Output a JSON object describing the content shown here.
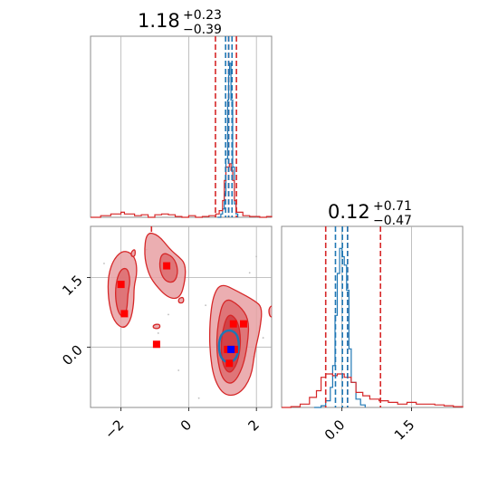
{
  "chart_data": [
    {
      "type": "histogram",
      "panel": "marginal-x",
      "title": {
        "base": "1.18",
        "sup": "+0.23",
        "sub": "−0.39"
      },
      "xlim": [
        -2.9,
        2.45
      ],
      "grid": true,
      "red_quantiles": [
        0.79,
        1.18,
        1.41
      ],
      "blue_quantiles": [
        1.09,
        1.18,
        1.28
      ],
      "series": [
        {
          "color": "#1f77b4",
          "style": "step",
          "bins": [
            [
              0.85,
              0.0
            ],
            [
              0.95,
              0.02
            ],
            [
              1.0,
              0.05
            ],
            [
              1.05,
              0.14
            ],
            [
              1.1,
              0.35
            ],
            [
              1.15,
              0.7
            ],
            [
              1.18,
              0.85
            ],
            [
              1.21,
              0.92
            ],
            [
              1.25,
              0.7
            ],
            [
              1.3,
              0.3
            ],
            [
              1.35,
              0.08
            ],
            [
              1.4,
              0.02
            ],
            [
              1.45,
              0.0
            ]
          ]
        },
        {
          "color": "#d62728",
          "style": "step",
          "bins": [
            [
              -2.9,
              0.0
            ],
            [
              -2.6,
              0.01
            ],
            [
              -2.3,
              0.02
            ],
            [
              -2.0,
              0.03
            ],
            [
              -1.9,
              0.02
            ],
            [
              -1.6,
              0.01
            ],
            [
              -1.4,
              0.015
            ],
            [
              -1.2,
              0.0
            ],
            [
              -1.0,
              0.015
            ],
            [
              -0.8,
              0.02
            ],
            [
              -0.6,
              0.015
            ],
            [
              -0.4,
              0.005
            ],
            [
              -0.2,
              0.0
            ],
            [
              0.0,
              0.01
            ],
            [
              0.2,
              0.0
            ],
            [
              0.4,
              0.005
            ],
            [
              0.6,
              0.01
            ],
            [
              0.8,
              0.02
            ],
            [
              0.9,
              0.04
            ],
            [
              1.0,
              0.1
            ],
            [
              1.05,
              0.22
            ],
            [
              1.1,
              0.3
            ],
            [
              1.2,
              0.32
            ],
            [
              1.25,
              0.28
            ],
            [
              1.3,
              0.22
            ],
            [
              1.35,
              0.1
            ],
            [
              1.4,
              0.03
            ],
            [
              1.6,
              0.01
            ],
            [
              1.8,
              0.005
            ],
            [
              2.1,
              0.0
            ],
            [
              2.3,
              0.005
            ],
            [
              2.45,
              0.0
            ]
          ]
        }
      ]
    },
    {
      "type": "histogram",
      "panel": "marginal-y",
      "title": {
        "base": "0.12",
        "sup": "+0.71",
        "sub": "−0.47"
      },
      "xlim": [
        -1.3,
        2.6
      ],
      "ticks": [
        "0.0",
        "1.5"
      ],
      "tick_values": [
        0.0,
        1.5
      ],
      "grid": true,
      "red_quantiles": [
        -0.35,
        0.12,
        0.83
      ],
      "blue_quantiles": [
        -0.14,
        0.01,
        0.12
      ],
      "series": [
        {
          "color": "#1f77b4",
          "style": "step",
          "bins": [
            [
              -0.6,
              0.0
            ],
            [
              -0.45,
              0.01
            ],
            [
              -0.35,
              0.04
            ],
            [
              -0.25,
              0.12
            ],
            [
              -0.2,
              0.25
            ],
            [
              -0.15,
              0.55
            ],
            [
              -0.1,
              0.8
            ],
            [
              -0.05,
              0.95
            ],
            [
              0.0,
              0.9
            ],
            [
              0.05,
              0.85
            ],
            [
              0.1,
              0.7
            ],
            [
              0.15,
              0.35
            ],
            [
              0.2,
              0.15
            ],
            [
              0.3,
              0.05
            ],
            [
              0.4,
              0.015
            ],
            [
              0.5,
              0.0
            ]
          ]
        },
        {
          "color": "#d62728",
          "style": "step",
          "bins": [
            [
              -1.3,
              0.0
            ],
            [
              -1.1,
              0.005
            ],
            [
              -0.9,
              0.02
            ],
            [
              -0.7,
              0.06
            ],
            [
              -0.55,
              0.1
            ],
            [
              -0.45,
              0.18
            ],
            [
              -0.35,
              0.2
            ],
            [
              -0.2,
              0.19
            ],
            [
              -0.1,
              0.2
            ],
            [
              0.05,
              0.18
            ],
            [
              0.2,
              0.15
            ],
            [
              0.3,
              0.09
            ],
            [
              0.45,
              0.07
            ],
            [
              0.6,
              0.05
            ],
            [
              0.8,
              0.04
            ],
            [
              1.0,
              0.03
            ],
            [
              1.2,
              0.02
            ],
            [
              1.4,
              0.03
            ],
            [
              1.6,
              0.02
            ],
            [
              1.8,
              0.02
            ],
            [
              2.0,
              0.015
            ],
            [
              2.2,
              0.01
            ],
            [
              2.4,
              0.005
            ],
            [
              2.6,
              0.0
            ]
          ]
        }
      ]
    },
    {
      "type": "contour",
      "panel": "joint",
      "xlim": [
        -2.9,
        2.45
      ],
      "ylim": [
        -1.3,
        2.6
      ],
      "xticks": [
        "−2",
        "0",
        "2"
      ],
      "xtick_values": [
        -2,
        0,
        2
      ],
      "yticks": [
        "0.0",
        "1.5"
      ],
      "ytick_values": [
        0.0,
        1.5
      ],
      "grid": true,
      "red_contours": [
        {
          "level": 1,
          "points": [
            [
              -2.2,
              1.92
            ],
            [
              -1.9,
              2.1
            ],
            [
              -1.58,
              1.95
            ],
            [
              -1.52,
              1.6
            ],
            [
              -1.62,
              1.3
            ],
            [
              -1.62,
              0.95
            ],
            [
              -1.72,
              0.55
            ],
            [
              -1.95,
              0.38
            ],
            [
              -2.25,
              0.6
            ],
            [
              -2.38,
              1.05
            ],
            [
              -2.38,
              1.55
            ]
          ]
        },
        {
          "level": 2,
          "points": [
            [
              -2.05,
              1.65
            ],
            [
              -1.82,
              1.72
            ],
            [
              -1.72,
              1.45
            ],
            [
              -1.8,
              1.15
            ],
            [
              -1.82,
              0.8
            ],
            [
              -1.95,
              0.62
            ],
            [
              -2.12,
              0.8
            ],
            [
              -2.18,
              1.25
            ]
          ]
        },
        {
          "level": 1,
          "points": [
            [
              -1.25,
              2.48
            ],
            [
              -0.9,
              2.42
            ],
            [
              -0.55,
              2.1
            ],
            [
              -0.3,
              1.95
            ],
            [
              -0.1,
              1.8
            ],
            [
              -0.1,
              1.45
            ],
            [
              -0.25,
              1.05
            ],
            [
              -0.6,
              1.05
            ],
            [
              -1.0,
              1.35
            ],
            [
              -1.2,
              1.6
            ],
            [
              -1.32,
              2.0
            ]
          ]
        },
        {
          "level": 2,
          "points": [
            [
              -0.8,
              2.05
            ],
            [
              -0.45,
              1.95
            ],
            [
              -0.3,
              1.65
            ],
            [
              -0.42,
              1.38
            ],
            [
              -0.72,
              1.42
            ],
            [
              -0.88,
              1.72
            ]
          ]
        },
        {
          "level": 1,
          "points": [
            [
              0.95,
              1.38
            ],
            [
              1.45,
              1.2
            ],
            [
              1.95,
              1.0
            ],
            [
              2.18,
              0.85
            ],
            [
              2.1,
              0.35
            ],
            [
              1.95,
              -0.1
            ],
            [
              1.85,
              -0.65
            ],
            [
              1.5,
              -1.02
            ],
            [
              1.05,
              -1.05
            ],
            [
              0.75,
              -0.7
            ],
            [
              0.62,
              -0.1
            ],
            [
              0.62,
              0.55
            ],
            [
              0.72,
              1.1
            ]
          ]
        },
        {
          "level": 2,
          "points": [
            [
              1.05,
              1.08
            ],
            [
              1.5,
              0.9
            ],
            [
              1.78,
              0.6
            ],
            [
              1.75,
              0.1
            ],
            [
              1.6,
              -0.45
            ],
            [
              1.3,
              -0.82
            ],
            [
              0.98,
              -0.7
            ],
            [
              0.82,
              -0.15
            ],
            [
              0.85,
              0.5
            ]
          ]
        },
        {
          "level": 3,
          "points": [
            [
              1.15,
              0.75
            ],
            [
              1.45,
              0.58
            ],
            [
              1.55,
              0.15
            ],
            [
              1.45,
              -0.35
            ],
            [
              1.2,
              -0.6
            ],
            [
              0.98,
              -0.35
            ],
            [
              0.95,
              0.2
            ]
          ]
        },
        {
          "level": 1,
          "points": [
            [
              2.35,
              0.85
            ],
            [
              2.55,
              0.92
            ],
            [
              2.6,
              0.7
            ],
            [
              2.4,
              0.62
            ]
          ]
        },
        {
          "level": 1,
          "points": [
            [
              -0.3,
              1.05
            ],
            [
              -0.15,
              1.08
            ],
            [
              -0.15,
              0.95
            ],
            [
              -0.3,
              0.95
            ]
          ]
        },
        {
          "level": 1,
          "points": [
            [
              -1.05,
              0.48
            ],
            [
              -0.85,
              0.5
            ],
            [
              -0.85,
              0.4
            ],
            [
              -1.05,
              0.4
            ]
          ]
        },
        {
          "level": 1,
          "points": [
            [
              -1.7,
              2.05
            ],
            [
              -1.58,
              2.12
            ],
            [
              -1.58,
              1.95
            ],
            [
              -1.7,
              1.95
            ]
          ]
        }
      ],
      "blue_contours": [
        {
          "level": 1,
          "points": [
            [
              0.95,
              0.28
            ],
            [
              1.18,
              0.38
            ],
            [
              1.42,
              0.3
            ],
            [
              1.5,
              0.05
            ],
            [
              1.42,
              -0.25
            ],
            [
              1.18,
              -0.35
            ],
            [
              0.95,
              -0.25
            ],
            [
              0.88,
              0.02
            ]
          ]
        }
      ],
      "red_points": [
        [
          -2.0,
          1.35
        ],
        [
          -1.9,
          0.72
        ],
        [
          -0.65,
          1.75
        ],
        [
          -0.95,
          0.06
        ],
        [
          1.32,
          0.5
        ],
        [
          1.62,
          0.5
        ],
        [
          1.15,
          -0.05
        ],
        [
          1.2,
          -0.35
        ],
        [
          1.35,
          -0.05
        ]
      ],
      "blue_points": [
        [
          1.25,
          -0.05
        ]
      ],
      "scatter_points": [
        [
          -1.25,
          2.1
        ],
        [
          -0.9,
          0.3
        ],
        [
          0.5,
          0.9
        ],
        [
          1.9,
          -0.2
        ],
        [
          2.2,
          0.2
        ],
        [
          -0.3,
          -0.5
        ],
        [
          1.8,
          1.6
        ],
        [
          0.3,
          -1.1
        ],
        [
          -2.5,
          1.8
        ],
        [
          2.0,
          1.95
        ],
        [
          -0.6,
          0.7
        ]
      ]
    }
  ]
}
